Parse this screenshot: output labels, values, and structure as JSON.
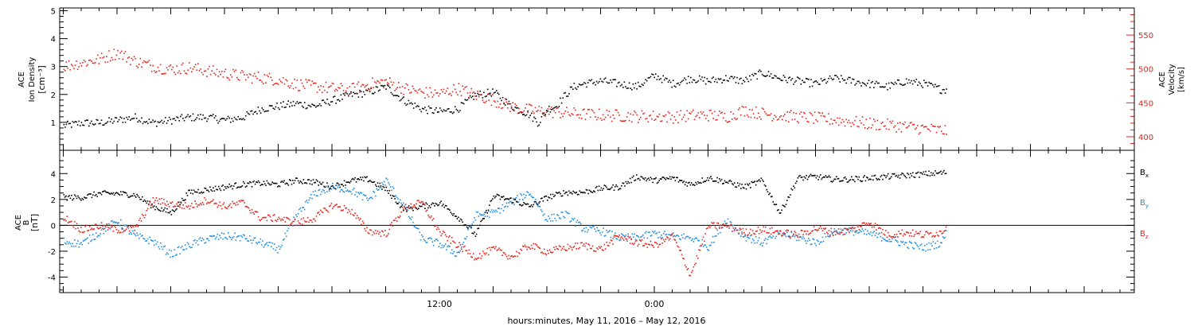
{
  "xlabel": "hours:minutes, May 11, 2016 – May 12, 2016",
  "x_tick_labels": [
    "12:00",
    "0:00"
  ],
  "colors": {
    "black": "#000000",
    "red": "#e8231b",
    "blue": "#1f8ee0"
  },
  "chart_data": [
    {
      "type": "scatter",
      "x_unit": "hours since May 11, 2016 00:00",
      "xlim": [
        -9.2,
        50.8
      ],
      "left_axis": {
        "label_lines": [
          "ACE",
          "Ion Density",
          "[cm⁻³]"
        ],
        "ylim": [
          0,
          5.1
        ],
        "ticks": [
          1,
          2,
          3,
          4,
          5
        ]
      },
      "right_axis": {
        "label_lines": [
          "ACE",
          "Velocity",
          "[km/s]"
        ],
        "ylim": [
          380,
          590
        ],
        "ticks": [
          400,
          450,
          500,
          550
        ]
      },
      "series": [
        {
          "axis": "left",
          "color": "#000000",
          "x": [
            -9.0,
            -8,
            -7,
            -6,
            -5,
            -4,
            -3,
            -2,
            -1,
            0,
            1,
            2,
            3,
            4,
            5,
            6,
            7,
            8,
            9,
            10,
            11,
            12,
            13,
            14,
            15,
            16,
            17,
            17.5,
            18,
            18.5,
            19,
            19.5,
            20,
            21,
            22,
            23,
            24,
            25,
            26,
            27,
            28,
            29,
            30,
            31,
            32,
            33,
            34,
            35,
            36,
            37,
            38,
            39,
            40,
            40.3
          ],
          "y": [
            0.9,
            1.0,
            1.0,
            1.1,
            1.2,
            1.0,
            1.1,
            1.2,
            1.2,
            1.1,
            1.2,
            1.5,
            1.6,
            1.7,
            1.6,
            1.8,
            2.0,
            2.1,
            2.3,
            1.8,
            1.5,
            1.4,
            1.5,
            2.0,
            2.1,
            1.6,
            1.3,
            1.0,
            1.5,
            1.6,
            2.0,
            2.3,
            2.4,
            2.5,
            2.4,
            2.3,
            2.7,
            2.4,
            2.6,
            2.5,
            2.6,
            2.5,
            2.8,
            2.6,
            2.5,
            2.4,
            2.6,
            2.5,
            2.4,
            2.3,
            2.5,
            2.4,
            2.2,
            2.2
          ]
        },
        {
          "axis": "right",
          "color": "#e8231b",
          "x": [
            -9.0,
            -8,
            -7,
            -6,
            -5,
            -4,
            -3,
            -2,
            -1,
            0,
            1,
            2,
            3,
            4,
            5,
            6,
            7,
            8,
            9,
            10,
            11,
            12,
            13,
            14,
            15,
            16,
            17,
            18,
            19,
            20,
            21,
            22,
            23,
            24,
            25,
            26,
            27,
            28,
            29,
            30,
            31,
            32,
            33,
            34,
            35,
            36,
            37,
            38,
            39,
            40,
            40.3
          ],
          "y": [
            505,
            510,
            515,
            525,
            512,
            505,
            500,
            503,
            498,
            494,
            490,
            488,
            485,
            478,
            475,
            472,
            470,
            478,
            482,
            472,
            466,
            464,
            472,
            462,
            455,
            445,
            440,
            438,
            436,
            434,
            433,
            432,
            431,
            431,
            430,
            432,
            433,
            430,
            440,
            435,
            432,
            430,
            428,
            426,
            423,
            420,
            418,
            416,
            413,
            410,
            410
          ]
        }
      ]
    },
    {
      "type": "scatter",
      "x_unit": "hours since May 11, 2016 00:00",
      "xlim": [
        -9.2,
        50.8
      ],
      "ylabel_lines": [
        "ACE",
        "B",
        "[nT]"
      ],
      "ylim": [
        -5.2,
        5.8
      ],
      "yticks": [
        -4,
        -2,
        0,
        2,
        4
      ],
      "zero_line": true,
      "series": [
        {
          "name": "Bx",
          "color": "#000000",
          "x": [
            -9.0,
            -8,
            -7,
            -6,
            -5,
            -4,
            -3,
            -2,
            -1,
            0,
            1,
            2,
            3,
            4,
            5,
            6,
            7,
            8,
            9,
            10,
            11,
            12,
            13,
            14,
            15,
            16,
            17,
            18,
            19,
            20,
            21,
            22,
            23,
            24,
            25,
            26,
            27,
            28,
            29,
            30,
            31,
            32,
            33,
            34,
            35,
            36,
            37,
            38,
            39,
            40,
            40.3
          ],
          "y": [
            2.2,
            2.2,
            2.5,
            2.5,
            2.4,
            1.5,
            1.0,
            2.6,
            2.8,
            3.0,
            3.2,
            3.3,
            3.2,
            3.5,
            3.4,
            3.0,
            3.5,
            3.6,
            2.8,
            1.3,
            1.5,
            1.8,
            0.7,
            -0.7,
            2.3,
            2.0,
            1.5,
            2.2,
            2.6,
            2.6,
            2.9,
            3.0,
            3.8,
            3.5,
            3.7,
            3.2,
            3.7,
            3.4,
            3.0,
            3.5,
            1.0,
            3.7,
            3.8,
            3.6,
            3.6,
            3.7,
            3.8,
            3.9,
            4.0,
            4.1,
            4.1
          ]
        },
        {
          "name": "By",
          "color": "#1f8ee0",
          "x": [
            -9.0,
            -8,
            -7,
            -6,
            -5,
            -4,
            -3,
            -2,
            -1,
            0,
            1,
            2,
            3,
            4,
            5,
            6,
            7,
            8,
            9,
            10,
            11,
            12,
            13,
            14,
            15,
            16,
            17,
            18,
            19,
            20,
            21,
            22,
            23,
            24,
            25,
            26,
            27,
            28,
            29,
            30,
            31,
            32,
            33,
            34,
            35,
            36,
            37,
            38,
            39,
            40,
            40.3
          ],
          "y": [
            -1.2,
            -1.4,
            -0.5,
            0.4,
            -0.8,
            -1.2,
            -2.2,
            -1.5,
            -1.0,
            -0.8,
            -0.9,
            -1.3,
            -1.8,
            0.8,
            2.5,
            3.0,
            2.8,
            2.0,
            3.5,
            1.5,
            -1.0,
            -1.4,
            -2.2,
            0.8,
            1.0,
            1.8,
            2.6,
            0.5,
            0.9,
            -0.2,
            -0.4,
            -0.9,
            -0.9,
            -0.6,
            -0.8,
            -0.9,
            -1.6,
            0.5,
            -0.8,
            -1.3,
            -0.6,
            -0.9,
            -1.3,
            -0.4,
            -0.4,
            -0.6,
            -1.0,
            -1.4,
            -1.7,
            -1.3,
            -0.5
          ]
        },
        {
          "name": "Bz",
          "color": "#e8231b",
          "x": [
            -9.0,
            -8,
            -7,
            -6,
            -5,
            -4,
            -3,
            -2,
            -1,
            0,
            1,
            2,
            3,
            4,
            5,
            6,
            7,
            8,
            9,
            10,
            11,
            12,
            13,
            14,
            15,
            16,
            17,
            18,
            19,
            20,
            21,
            22,
            23,
            24,
            25,
            26,
            27,
            28,
            29,
            30,
            31,
            32,
            33,
            34,
            35,
            36,
            37,
            38,
            39,
            40,
            40.3
          ],
          "y": [
            0.7,
            -0.3,
            0.0,
            -0.3,
            -0.2,
            2.0,
            1.7,
            1.5,
            2.0,
            1.5,
            1.8,
            0.6,
            0.6,
            0.2,
            0.6,
            1.6,
            1.2,
            -0.4,
            -0.6,
            1.4,
            1.8,
            -0.5,
            -1.5,
            -2.4,
            -1.8,
            -2.4,
            -1.5,
            -2.0,
            -1.7,
            -1.5,
            -1.8,
            -0.8,
            -1.3,
            -1.5,
            -0.8,
            -3.8,
            0.0,
            0.0,
            -0.5,
            -0.3,
            -0.5,
            -0.7,
            -0.2,
            -0.5,
            -0.3,
            0.3,
            -0.7,
            -0.5,
            -0.7,
            -0.5,
            0.0
          ]
        }
      ]
    }
  ]
}
